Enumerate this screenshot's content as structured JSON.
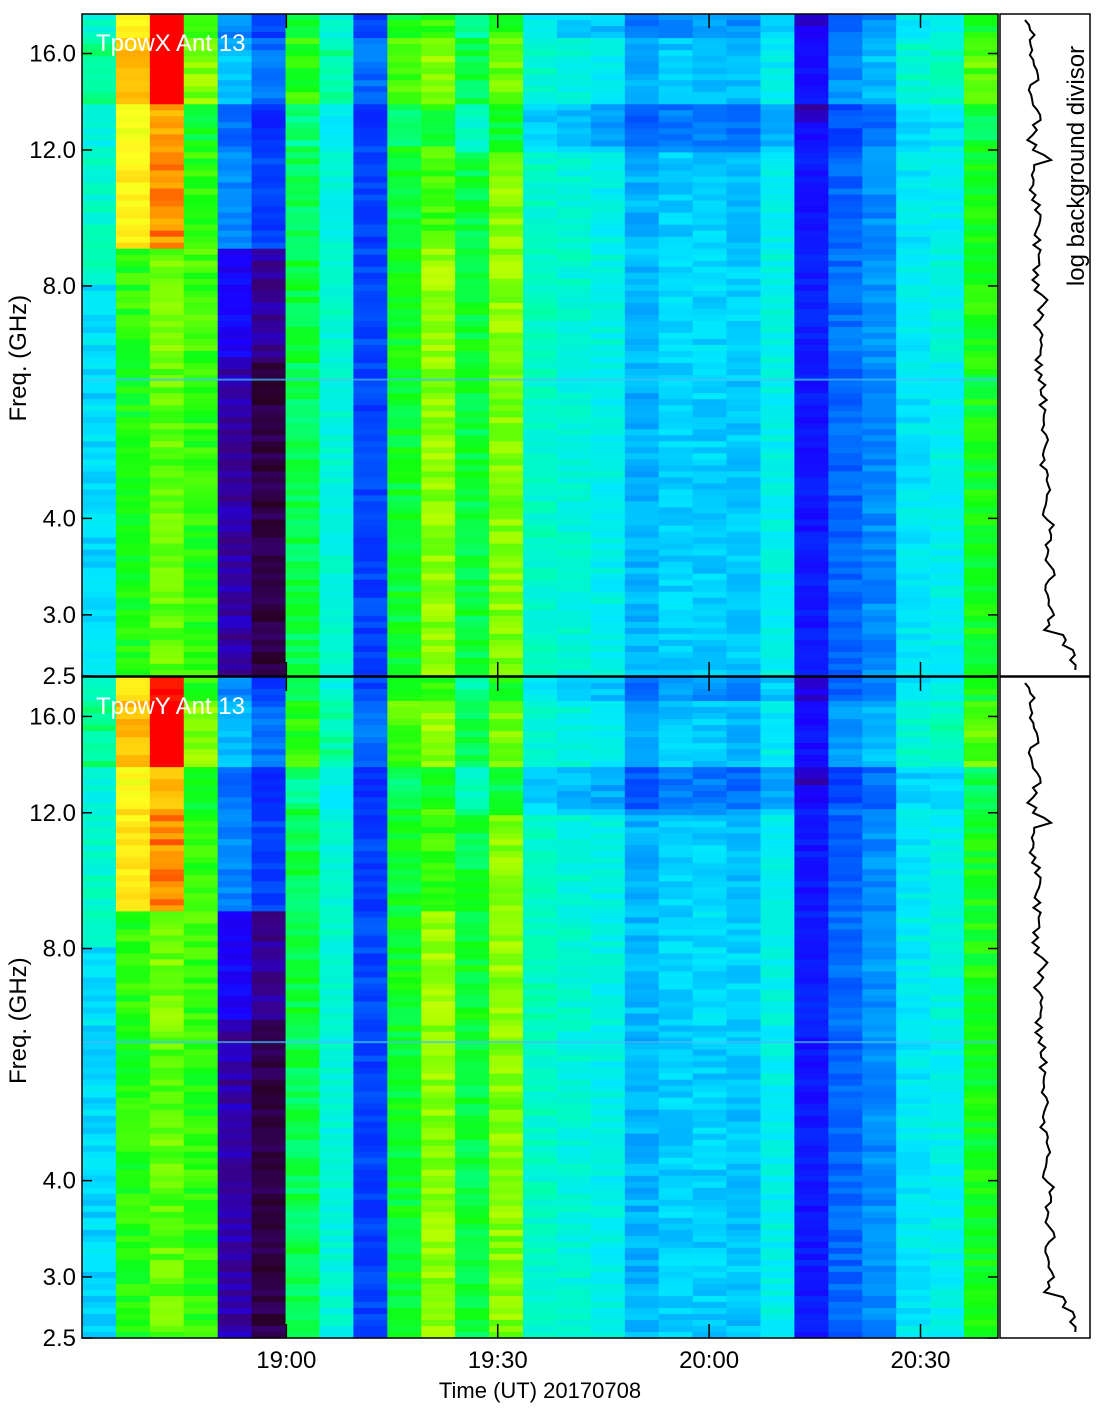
{
  "figure": {
    "xaxis_title": "Time (UT) 20170708",
    "side_label": "log background divisor"
  },
  "colors": {
    "frame": "#000000",
    "panel_label": "#ffffff",
    "right_panel_bg": "#ffffff",
    "colormap": [
      "#250018",
      "#3a0080",
      "#1a00ff",
      "#0038ff",
      "#0090ff",
      "#00e8ff",
      "#00ffb0",
      "#10ff10",
      "#b0ff00",
      "#ffff20",
      "#ffb000",
      "#ff0000"
    ]
  },
  "chart_data": [
    {
      "type": "heatmap",
      "title": "TpowX Ant 13",
      "ylabel": "Freq. (GHz)",
      "yscale": "log",
      "ylim": [
        2.5,
        18
      ],
      "yticks": [
        "16.0",
        "12.0",
        "8.0",
        "4.0",
        "3.0",
        "2.5"
      ],
      "ytick_values": [
        16,
        12,
        8,
        4,
        3,
        2.5
      ],
      "xticks": [
        "19:00",
        "19:30",
        "20:00",
        "20:30"
      ],
      "xlim": [
        "18:31",
        "20:41"
      ],
      "time_columns": [
        "18:32",
        "18:37",
        "18:41",
        "18:46",
        "18:51",
        "18:56",
        "19:01",
        "19:06",
        "19:11",
        "19:16",
        "19:21",
        "19:26",
        "19:31",
        "19:36",
        "19:40",
        "19:45",
        "19:50",
        "19:55",
        "20:00",
        "20:05",
        "20:10",
        "20:14",
        "20:19",
        "20:24",
        "20:29",
        "20:34",
        "20:39"
      ],
      "column_levels": [
        0.52,
        0.84,
        0.93,
        0.65,
        0.36,
        0.28,
        0.6,
        0.5,
        0.28,
        0.62,
        0.66,
        0.55,
        0.64,
        0.46,
        0.44,
        0.42,
        0.34,
        0.37,
        0.37,
        0.36,
        0.42,
        0.16,
        0.32,
        0.36,
        0.46,
        0.48,
        0.63
      ],
      "side_panel": "log background divisor"
    },
    {
      "type": "heatmap",
      "title": "TpowY Ant 13",
      "ylabel": "Freq. (GHz)",
      "yscale": "log",
      "ylim": [
        2.5,
        18
      ],
      "yticks": [
        "16.0",
        "12.0",
        "8.0",
        "4.0",
        "3.0",
        "2.5"
      ],
      "ytick_values": [
        16,
        12,
        8,
        4,
        3,
        2.5
      ],
      "xticks": [
        "19:00",
        "19:30",
        "20:00",
        "20:30"
      ],
      "xlim": [
        "18:31",
        "20:41"
      ],
      "time_columns": [
        "18:32",
        "18:37",
        "18:41",
        "18:46",
        "18:51",
        "18:56",
        "19:01",
        "19:06",
        "19:11",
        "19:16",
        "19:21",
        "19:26",
        "19:31",
        "19:36",
        "19:40",
        "19:45",
        "19:50",
        "19:55",
        "20:00",
        "20:05",
        "20:10",
        "20:14",
        "20:19",
        "20:24",
        "20:29",
        "20:34",
        "20:39"
      ],
      "column_levels": [
        0.52,
        0.84,
        0.93,
        0.65,
        0.36,
        0.28,
        0.6,
        0.5,
        0.28,
        0.62,
        0.66,
        0.55,
        0.64,
        0.46,
        0.44,
        0.42,
        0.34,
        0.37,
        0.37,
        0.36,
        0.42,
        0.16,
        0.32,
        0.36,
        0.46,
        0.48,
        0.63
      ],
      "side_panel": "log background divisor"
    }
  ]
}
